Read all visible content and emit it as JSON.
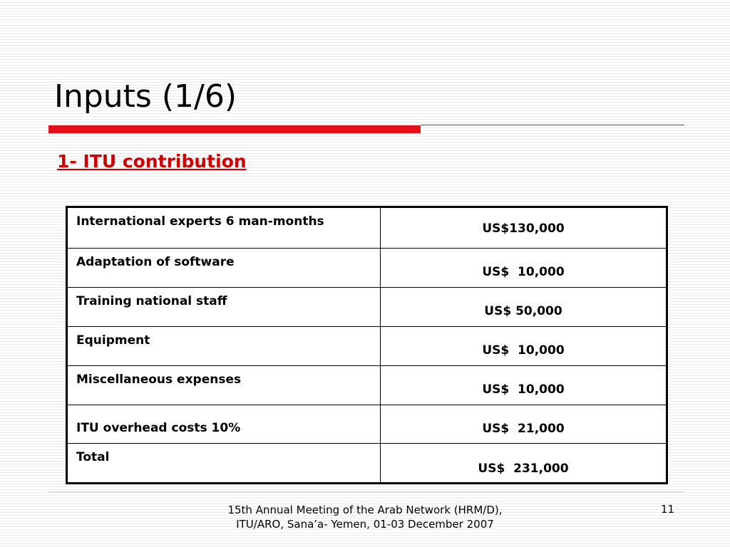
{
  "slide": {
    "title": "Inputs (1/6)",
    "subtitle": "1- ITU contribution",
    "accent_color": "#e3101b",
    "subtitle_color": "#cc0000"
  },
  "table": {
    "rows": [
      {
        "item": "International experts 6 man-months",
        "amount": "US$130,000"
      },
      {
        "item": "Adaptation of software",
        "amount": "US$  10,000"
      },
      {
        "item": "Training national staff",
        "amount": "US$ 50,000"
      },
      {
        "item": "Equipment",
        "amount": "US$  10,000"
      },
      {
        "item": "Miscellaneous expenses",
        "amount": "US$  10,000"
      },
      {
        "item": "ITU overhead costs  10%",
        "amount": "US$  21,000"
      },
      {
        "item": "Total",
        "amount": "US$  231,000"
      }
    ]
  },
  "footer": {
    "text": "15th Annual Meeting of the Arab Network (HRM/D), ITU/ARO, Sana’a- Yemen, 01-03 December 2007",
    "page_number": "11"
  }
}
